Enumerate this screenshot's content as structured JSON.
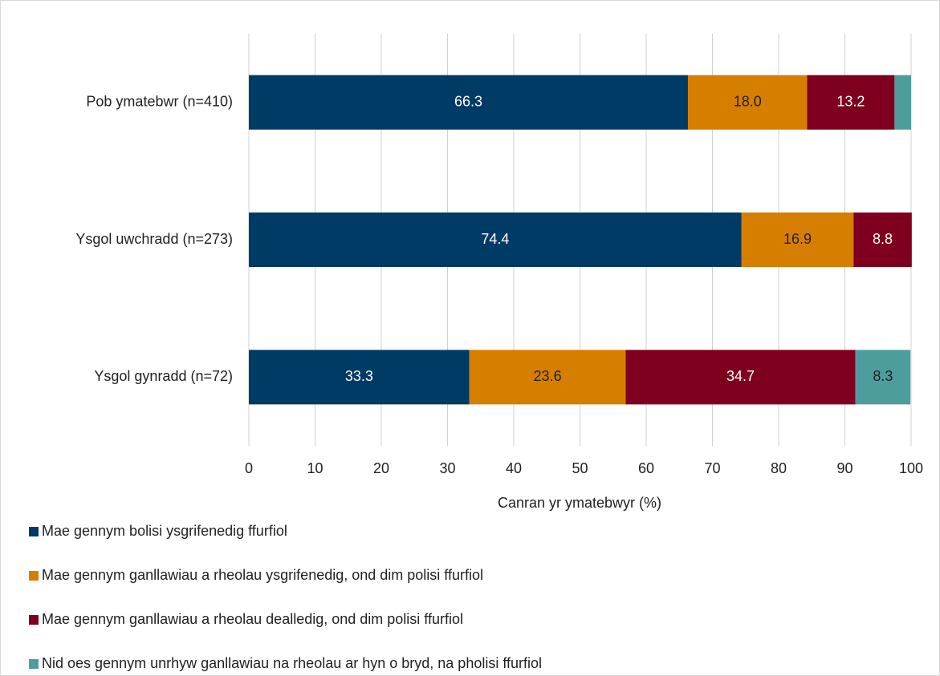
{
  "chart_data": {
    "type": "stacked_barh",
    "categories": [
      "Pob ymatebwr (n=410)",
      "Ysgol uwchradd (n=273)",
      "Ysgol gynradd (n=72)"
    ],
    "series": [
      {
        "name": "Mae gennym bolisi ysgrifenedig ffurfiol",
        "color": "#003b65",
        "label_color": "#ffffff",
        "values": [
          66.3,
          74.4,
          33.3
        ],
        "value_labels": [
          "66.3",
          "74.4",
          "33.3"
        ]
      },
      {
        "name": "Mae gennym ganllawiau a rheolau ysgrifenedig, ond dim polisi ffurfiol",
        "color": "#d67e00",
        "label_color": "#222222",
        "values": [
          18.0,
          16.9,
          23.6
        ],
        "value_labels": [
          "18.0",
          "16.9",
          "23.6"
        ]
      },
      {
        "name": "Mae gennym ganllawiau a rheolau dealledig, ond dim polisi ffurfiol",
        "color": "#7f001e",
        "label_color": "#ffffff",
        "values": [
          13.2,
          8.8,
          34.7
        ],
        "value_labels": [
          "13.2",
          "8.8",
          "34.7"
        ]
      },
      {
        "name": "Nid oes gennym unrhyw ganllawiau na rheolau ar hyn o bryd, na pholisi ffurfiol",
        "color": "#4e9d9d",
        "label_color": "#222222",
        "values": [
          2.5,
          null,
          8.3
        ],
        "value_labels": [
          null,
          null,
          "8.3"
        ]
      }
    ],
    "xlabel": "Canran yr ymatebwyr (%)",
    "xlim": [
      0,
      100
    ],
    "xticks": [
      0,
      10,
      20,
      30,
      40,
      50,
      60,
      70,
      80,
      90,
      100
    ],
    "grid": true,
    "legend": "bottom"
  }
}
